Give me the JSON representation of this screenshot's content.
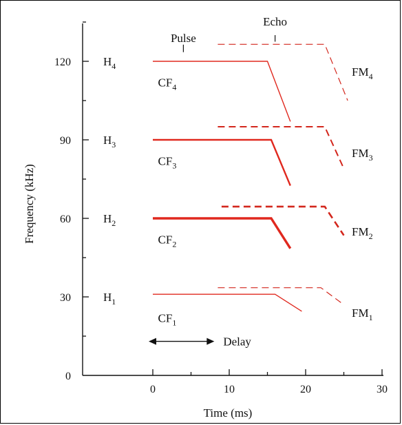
{
  "chart_data": {
    "type": "line",
    "xlabel": "Time (ms)",
    "ylabel": "Frequency (kHz)",
    "xlim": [
      -10,
      30
    ],
    "ylim": [
      0,
      135
    ],
    "x_ticks": [
      0,
      10,
      20,
      30
    ],
    "y_ticks": [
      0,
      30,
      60,
      90,
      120
    ],
    "colors": {
      "pulse": "#e0281e",
      "echo": "#d3261c",
      "axis": "#111111"
    },
    "series": [
      {
        "harmonic": "H1",
        "label": "CF1",
        "style": "solid",
        "width": 1.3,
        "points": [
          [
            0,
            31
          ],
          [
            16,
            31
          ],
          [
            19.5,
            24.5
          ]
        ]
      },
      {
        "harmonic": "H2",
        "label": "CF2",
        "style": "solid",
        "width": 3.4,
        "points": [
          [
            0,
            60
          ],
          [
            15.5,
            60
          ],
          [
            18,
            48.5
          ]
        ]
      },
      {
        "harmonic": "H3",
        "label": "CF3",
        "style": "solid",
        "width": 2.4,
        "points": [
          [
            0,
            90
          ],
          [
            15.5,
            90
          ],
          [
            18,
            72.5
          ]
        ]
      },
      {
        "harmonic": "H4",
        "label": "CF4",
        "style": "solid",
        "width": 1.4,
        "points": [
          [
            0,
            120
          ],
          [
            15,
            120
          ],
          [
            18,
            97
          ]
        ]
      },
      {
        "label": "FM1",
        "style": "dashed",
        "width": 1.2,
        "points": [
          [
            8.5,
            33.5
          ],
          [
            22,
            33.5
          ],
          [
            25,
            27
          ]
        ]
      },
      {
        "label": "FM2",
        "style": "dashed",
        "width": 2.6,
        "points": [
          [
            9,
            64.5
          ],
          [
            22.5,
            64.5
          ],
          [
            25,
            53.5
          ]
        ]
      },
      {
        "label": "FM3",
        "style": "dashed",
        "width": 2.0,
        "points": [
          [
            8.5,
            95
          ],
          [
            22.5,
            95
          ],
          [
            25,
            79
          ]
        ]
      },
      {
        "label": "FM4",
        "style": "dashed",
        "width": 1.2,
        "points": [
          [
            8.5,
            126.5
          ],
          [
            22.5,
            126.5
          ],
          [
            25.5,
            105
          ]
        ]
      }
    ],
    "harmonic_labels": [
      {
        "text": "H",
        "sub": "4",
        "y": 120
      },
      {
        "text": "H",
        "sub": "3",
        "y": 90
      },
      {
        "text": "H",
        "sub": "2",
        "y": 60
      },
      {
        "text": "H",
        "sub": "1",
        "y": 30
      }
    ],
    "cf_labels": [
      {
        "text": "CF",
        "sub": "4",
        "x": 0.5,
        "y": 112
      },
      {
        "text": "CF",
        "sub": "3",
        "x": 0.5,
        "y": 82
      },
      {
        "text": "CF",
        "sub": "2",
        "x": 0.5,
        "y": 52
      },
      {
        "text": "CF",
        "sub": "1",
        "x": 0.5,
        "y": 22
      }
    ],
    "fm_labels": [
      {
        "text": "FM",
        "sub": "4",
        "x": 25.5,
        "y": 116
      },
      {
        "text": "FM",
        "sub": "3",
        "x": 25.5,
        "y": 85
      },
      {
        "text": "FM",
        "sub": "2",
        "x": 25.5,
        "y": 55
      },
      {
        "text": "FM",
        "sub": "1",
        "x": 25.5,
        "y": 24
      }
    ],
    "annotations": {
      "pulse": {
        "text": "Pulse",
        "x": 4,
        "y": 129,
        "marker_top": 132,
        "marker_bottom": 123.5
      },
      "echo": {
        "text": "Echo",
        "x": 16,
        "y": 135,
        "marker_top": 130,
        "marker_bottom": 127.5
      },
      "delay": {
        "text": "Delay",
        "x_start": 0,
        "x_end": 8.5,
        "y": 13
      }
    }
  }
}
